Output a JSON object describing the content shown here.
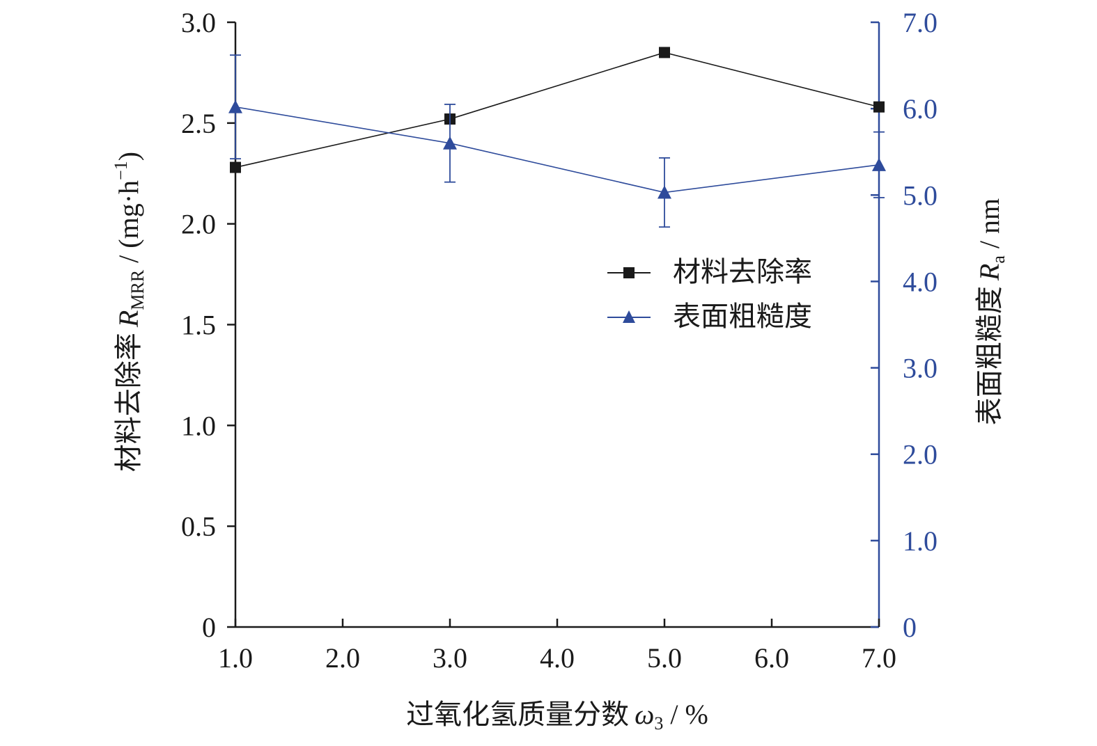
{
  "chart_data": {
    "type": "line",
    "xlabel": "过氧化氢质量分数",
    "xlabel_symbol": "ω",
    "xlabel_sub": "3",
    "xlabel_unit": " / %",
    "ylabel_left": "材料去除率",
    "ylabel_left_symbol": "R",
    "ylabel_left_sub": "MRR",
    "ylabel_left_unit": " / (mg·h",
    "ylabel_left_unit_sup": "−1",
    "ylabel_left_unit_end": ")",
    "ylabel_right": "表面粗糙度",
    "ylabel_right_symbol": "R",
    "ylabel_right_sub": "a",
    "ylabel_right_unit": " / nm",
    "xlim": [
      1.0,
      7.0
    ],
    "ylim_left": [
      0,
      3.0
    ],
    "ylim_right": [
      0,
      7.0
    ],
    "x_ticks": [
      "1.0",
      "2.0",
      "3.0",
      "4.0",
      "5.0",
      "6.0",
      "7.0"
    ],
    "y_left_ticks": [
      "0",
      "0.5",
      "1.0",
      "1.5",
      "2.0",
      "2.5",
      "3.0"
    ],
    "y_right_ticks": [
      "0",
      "1.0",
      "2.0",
      "3.0",
      "4.0",
      "5.0",
      "6.0",
      "7.0"
    ],
    "grid": false,
    "legend_position": "right-center",
    "series": [
      {
        "name": "材料去除率",
        "axis": "left",
        "marker": "square",
        "color": "#1a1a1a",
        "x": [
          1.0,
          3.0,
          5.0,
          7.0
        ],
        "y": [
          2.28,
          2.52,
          2.85,
          2.58
        ]
      },
      {
        "name": "表面粗糙度",
        "axis": "right",
        "marker": "triangle",
        "color": "#2e4b9b",
        "x": [
          1.0,
          3.0,
          5.0,
          7.0
        ],
        "y": [
          6.02,
          5.6,
          5.03,
          5.35
        ],
        "err": [
          0.6,
          0.45,
          0.4,
          0.38
        ]
      }
    ]
  }
}
